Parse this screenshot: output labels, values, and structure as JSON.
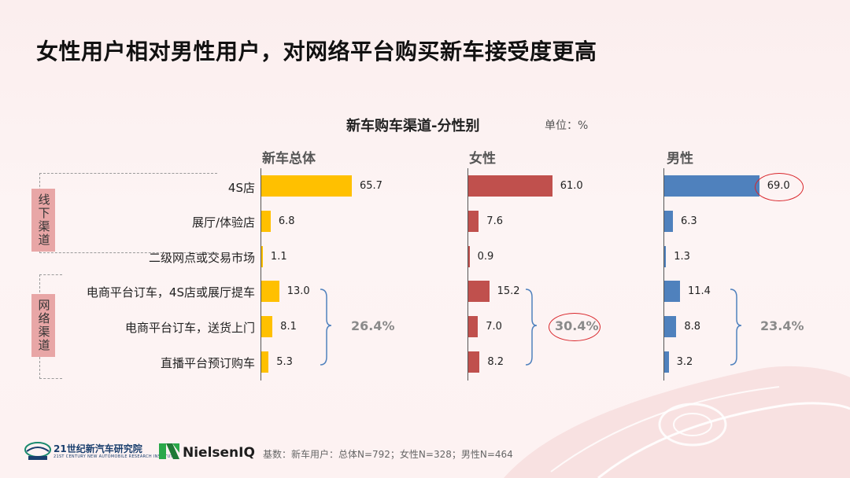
{
  "page_title": "女性用户相对男性用户，对网络平台购买新车接受度更高",
  "chart_title": "新车购车渠道-分性别",
  "unit": "单位：%",
  "groups": [
    {
      "label": "线下渠道"
    },
    {
      "label": "网络渠道"
    }
  ],
  "online_totals": [
    "26.4%",
    "30.4%",
    "23.4%"
  ],
  "footer_note": "基数：新车用户：总体N=792；女性N=328；男性N=464",
  "logos": {
    "logo1_name": "21世纪新汽车研究院",
    "logo1_sub": "21ST CENTURY NEW AUTOMOBILE RESEARCH INSTITUTE",
    "logo2_name": "NielsenIQ"
  },
  "colors": {
    "total": "#ffc000",
    "female": "#c0504d",
    "male": "#4f81bd",
    "highlight": "#d9262b"
  },
  "chart_data": {
    "type": "bar",
    "orientation": "horizontal",
    "title": "新车购车渠道-分性别",
    "categories": [
      "4S店",
      "展厅/体验店",
      "二级网点或交易市场",
      "电商平台订车，4S店或展厅提车",
      "电商平台订车，送货上门",
      "直播平台预订购车"
    ],
    "series": [
      {
        "name": "新车总体",
        "values": [
          65.7,
          6.8,
          1.1,
          13.0,
          8.1,
          5.3
        ],
        "labels": [
          "65.7",
          "6.8",
          "1.1",
          "13.0",
          "8.1",
          "5.3"
        ]
      },
      {
        "name": "女性",
        "values": [
          61.0,
          7.6,
          0.9,
          15.2,
          7.0,
          8.2
        ],
        "labels": [
          "61.0",
          "7.6",
          "0.9",
          "15.2",
          "7.0",
          "8.2"
        ]
      },
      {
        "name": "男性",
        "values": [
          69.0,
          6.3,
          1.3,
          11.4,
          8.8,
          3.2
        ],
        "labels": [
          "69.0",
          "6.3",
          "1.3",
          "11.4",
          "8.8",
          "3.2"
        ]
      }
    ],
    "highlighted": [
      {
        "series": "男性",
        "category": "4S店"
      },
      {
        "series": "女性",
        "online_total": "30.4%"
      }
    ]
  }
}
